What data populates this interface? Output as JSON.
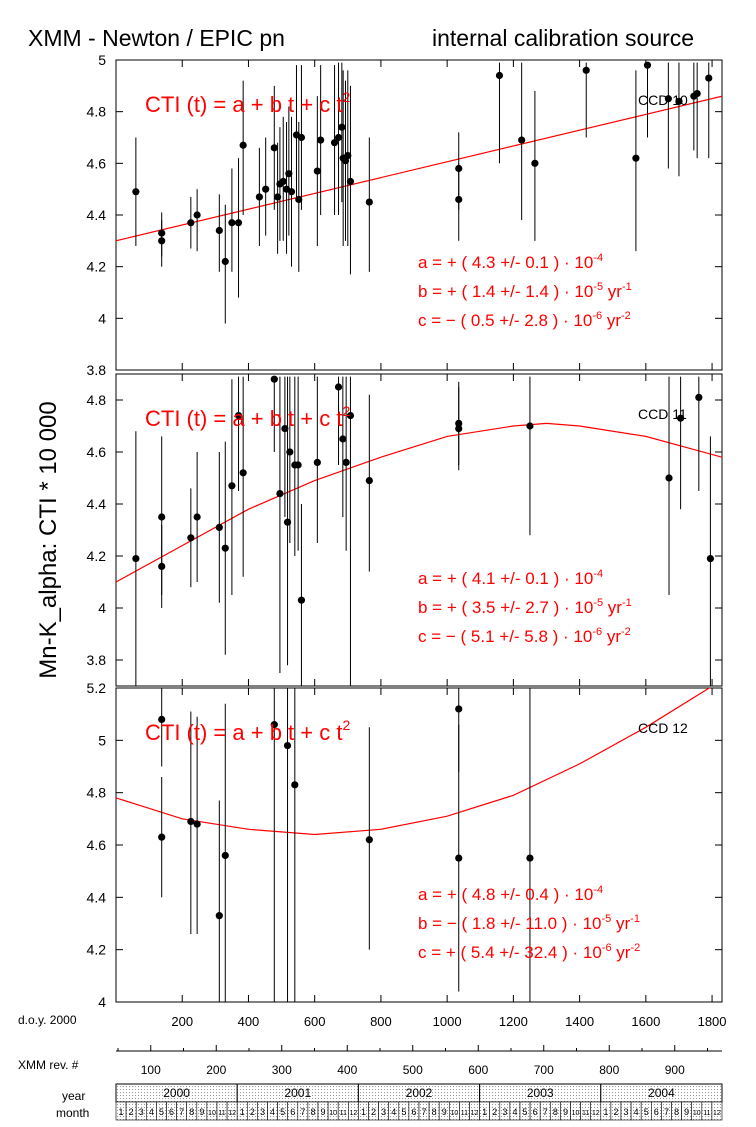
{
  "header": {
    "title_left": "XMM - Newton  /  EPIC pn",
    "title_right": "internal calibration source"
  },
  "ylabel": "Mn-K_alpha:  CTI * 10 000",
  "axes": {
    "doy_label": "d.o.y. 2000",
    "doy_ticks": [
      "200",
      "400",
      "600",
      "800",
      "1000",
      "1200",
      "1400",
      "1600",
      "1800"
    ],
    "rev_label": "XMM rev. #",
    "rev_ticks": [
      "100",
      "200",
      "300",
      "400",
      "500",
      "600",
      "700",
      "800",
      "900"
    ],
    "year_label": "year",
    "years": [
      "2000",
      "2001",
      "2002",
      "2003",
      "2004"
    ],
    "month_label": "month",
    "months": [
      "1",
      "2",
      "3",
      "4",
      "5",
      "6",
      "7",
      "8",
      "9",
      "10",
      "11",
      "12"
    ]
  },
  "colors": {
    "fit": "#ff0000",
    "points": "#000000"
  },
  "chart_data": [
    {
      "type": "scatter",
      "ccd_label": "CCD 10",
      "ylim": [
        3.8,
        5.0
      ],
      "yticks": [
        "3.8",
        "4",
        "4.2",
        "4.4",
        "4.6",
        "4.8",
        "5"
      ],
      "xlim": [
        0,
        1830
      ],
      "formula": "CTI (t)  =  a + b t + c t",
      "formula_sup": "2",
      "params": [
        {
          "name": "a",
          "sign": "+",
          "val": "( 4.3 +/- 0.1 )",
          "pow": "10",
          "exp": "-4",
          "unit": "",
          "unit_exp": ""
        },
        {
          "name": "b",
          "sign": "+",
          "val": "( 1.4 +/- 1.4 )",
          "pow": "10",
          "exp": "-5",
          "unit": "yr",
          "unit_exp": "-1"
        },
        {
          "name": "c",
          "sign": "−",
          "val": "( 0.5 +/- 2.8 )",
          "pow": "10",
          "exp": "-6",
          "unit": "yr",
          "unit_exp": "-2"
        }
      ],
      "fit": [
        [
          0,
          4.3
        ],
        [
          1830,
          4.86
        ]
      ],
      "points": [
        {
          "x": 60,
          "y": 4.49,
          "lo": 4.28,
          "hi": 4.7
        },
        {
          "x": 138,
          "y": 4.33,
          "lo": 4.24,
          "hi": 4.41
        },
        {
          "x": 138,
          "y": 4.3,
          "lo": 4.2,
          "hi": 4.38
        },
        {
          "x": 226,
          "y": 4.37,
          "lo": 4.27,
          "hi": 4.47
        },
        {
          "x": 245,
          "y": 4.4,
          "lo": 4.26,
          "hi": 4.5
        },
        {
          "x": 312,
          "y": 4.34,
          "lo": 4.18,
          "hi": 4.48
        },
        {
          "x": 330,
          "y": 4.22,
          "lo": 3.98,
          "hi": 4.44
        },
        {
          "x": 350,
          "y": 4.37,
          "lo": 4.18,
          "hi": 4.58
        },
        {
          "x": 370,
          "y": 4.37,
          "lo": 4.08,
          "hi": 4.62
        },
        {
          "x": 384,
          "y": 4.67,
          "lo": 4.4,
          "hi": 4.92
        },
        {
          "x": 433,
          "y": 4.47,
          "lo": 4.28,
          "hi": 4.66
        },
        {
          "x": 452,
          "y": 4.5,
          "lo": 4.32,
          "hi": 4.7
        },
        {
          "x": 478,
          "y": 4.66,
          "lo": 4.42,
          "hi": 4.9
        },
        {
          "x": 488,
          "y": 4.47,
          "lo": 4.25,
          "hi": 4.68
        },
        {
          "x": 495,
          "y": 4.52,
          "lo": 4.3,
          "hi": 4.74
        },
        {
          "x": 505,
          "y": 4.53,
          "lo": 4.3,
          "hi": 4.78
        },
        {
          "x": 515,
          "y": 4.5,
          "lo": 4.25,
          "hi": 4.76
        },
        {
          "x": 522,
          "y": 4.56,
          "lo": 4.32,
          "hi": 4.82
        },
        {
          "x": 530,
          "y": 4.49,
          "lo": 4.2,
          "hi": 4.78
        },
        {
          "x": 545,
          "y": 4.71,
          "lo": 4.45,
          "hi": 4.98
        },
        {
          "x": 552,
          "y": 4.46,
          "lo": 4.18,
          "hi": 4.76
        },
        {
          "x": 560,
          "y": 4.7,
          "lo": 4.42,
          "hi": 4.98
        },
        {
          "x": 608,
          "y": 4.57,
          "lo": 4.28,
          "hi": 4.86
        },
        {
          "x": 618,
          "y": 4.69,
          "lo": 4.4,
          "hi": 4.98
        },
        {
          "x": 660,
          "y": 4.68,
          "lo": 4.4,
          "hi": 4.98
        },
        {
          "x": 672,
          "y": 4.7,
          "lo": 4.4,
          "hi": 4.99
        },
        {
          "x": 682,
          "y": 4.74,
          "lo": 4.45,
          "hi": 4.99
        },
        {
          "x": 686,
          "y": 4.62,
          "lo": 4.28,
          "hi": 4.96
        },
        {
          "x": 693,
          "y": 4.61,
          "lo": 4.3,
          "hi": 4.92
        },
        {
          "x": 700,
          "y": 4.63,
          "lo": 4.28,
          "hi": 4.96
        },
        {
          "x": 708,
          "y": 4.53,
          "lo": 4.17,
          "hi": 4.9
        },
        {
          "x": 765,
          "y": 4.45,
          "lo": 4.18,
          "hi": 4.7
        },
        {
          "x": 1035,
          "y": 4.58,
          "lo": 4.42,
          "hi": 4.72
        },
        {
          "x": 1035,
          "y": 4.46,
          "lo": 4.3,
          "hi": 4.6
        },
        {
          "x": 1158,
          "y": 4.94,
          "lo": 4.6,
          "hi": 4.99
        },
        {
          "x": 1225,
          "y": 4.69,
          "lo": 4.38,
          "hi": 4.99
        },
        {
          "x": 1265,
          "y": 4.6,
          "lo": 4.3,
          "hi": 4.88
        },
        {
          "x": 1420,
          "y": 4.96,
          "lo": 4.7,
          "hi": 4.99
        },
        {
          "x": 1570,
          "y": 4.62,
          "lo": 4.26,
          "hi": 4.96
        },
        {
          "x": 1605,
          "y": 4.98,
          "lo": 4.7,
          "hi": 4.99
        },
        {
          "x": 1668,
          "y": 4.85,
          "lo": 4.58,
          "hi": 4.99
        },
        {
          "x": 1700,
          "y": 4.84,
          "lo": 4.55,
          "hi": 4.99
        },
        {
          "x": 1745,
          "y": 4.86,
          "lo": 4.65,
          "hi": 4.99
        },
        {
          "x": 1755,
          "y": 4.87,
          "lo": 4.62,
          "hi": 4.99
        },
        {
          "x": 1790,
          "y": 4.93,
          "lo": 4.62,
          "hi": 4.99
        }
      ]
    },
    {
      "type": "scatter",
      "ccd_label": "CCD 11",
      "ylim": [
        3.7,
        4.9
      ],
      "yticks": [
        "3.8",
        "4",
        "4.2",
        "4.4",
        "4.6",
        "4.8"
      ],
      "xlim": [
        0,
        1830
      ],
      "formula": "CTI (t)  =  a + b t + c t",
      "formula_sup": "2",
      "params": [
        {
          "name": "a",
          "sign": "+",
          "val": "( 4.1 +/- 0.1 )",
          "pow": "10",
          "exp": "-4",
          "unit": "",
          "unit_exp": ""
        },
        {
          "name": "b",
          "sign": "+",
          "val": "( 3.5 +/- 2.7 )",
          "pow": "10",
          "exp": "-5",
          "unit": "yr",
          "unit_exp": "-1"
        },
        {
          "name": "c",
          "sign": "−",
          "val": "( 5.1 +/- 5.8 )",
          "pow": "10",
          "exp": "-6",
          "unit": "yr",
          "unit_exp": "-2"
        }
      ],
      "fit": [
        [
          0,
          4.1
        ],
        [
          200,
          4.24
        ],
        [
          400,
          4.38
        ],
        [
          600,
          4.49
        ],
        [
          800,
          4.58
        ],
        [
          1000,
          4.66
        ],
        [
          1200,
          4.7
        ],
        [
          1300,
          4.71
        ],
        [
          1400,
          4.7
        ],
        [
          1600,
          4.66
        ],
        [
          1830,
          4.58
        ]
      ],
      "points": [
        {
          "x": 60,
          "y": 4.19,
          "lo": 3.7,
          "hi": 4.68
        },
        {
          "x": 138,
          "y": 4.35,
          "lo": 4.05,
          "hi": 4.66
        },
        {
          "x": 138,
          "y": 4.16,
          "lo": 4.0,
          "hi": 4.32
        },
        {
          "x": 226,
          "y": 4.27,
          "lo": 4.08,
          "hi": 4.46
        },
        {
          "x": 245,
          "y": 4.35,
          "lo": 4.1,
          "hi": 4.6
        },
        {
          "x": 312,
          "y": 4.31,
          "lo": 4.02,
          "hi": 4.6
        },
        {
          "x": 330,
          "y": 4.23,
          "lo": 3.82,
          "hi": 4.64
        },
        {
          "x": 350,
          "y": 4.47,
          "lo": 4.05,
          "hi": 4.88
        },
        {
          "x": 370,
          "y": 4.74,
          "lo": 4.45,
          "hi": 4.89
        },
        {
          "x": 384,
          "y": 4.52,
          "lo": 4.12,
          "hi": 4.89
        },
        {
          "x": 478,
          "y": 4.88,
          "lo": 4.6,
          "hi": 4.89
        },
        {
          "x": 495,
          "y": 4.44,
          "lo": 3.75,
          "hi": 4.89
        },
        {
          "x": 510,
          "y": 4.69,
          "lo": 4.35,
          "hi": 4.89
        },
        {
          "x": 518,
          "y": 4.33,
          "lo": 3.78,
          "hi": 4.89
        },
        {
          "x": 525,
          "y": 4.6,
          "lo": 4.25,
          "hi": 4.89
        },
        {
          "x": 540,
          "y": 4.55,
          "lo": 4.2,
          "hi": 4.89
        },
        {
          "x": 550,
          "y": 4.55,
          "lo": 4.22,
          "hi": 4.89
        },
        {
          "x": 560,
          "y": 4.03,
          "lo": 3.7,
          "hi": 4.4
        },
        {
          "x": 608,
          "y": 4.56,
          "lo": 4.25,
          "hi": 4.89
        },
        {
          "x": 672,
          "y": 4.85,
          "lo": 4.55,
          "hi": 4.89
        },
        {
          "x": 685,
          "y": 4.65,
          "lo": 4.35,
          "hi": 4.89
        },
        {
          "x": 695,
          "y": 4.56,
          "lo": 4.22,
          "hi": 4.89
        },
        {
          "x": 708,
          "y": 4.74,
          "lo": 3.7,
          "hi": 4.89
        },
        {
          "x": 765,
          "y": 4.49,
          "lo": 4.14,
          "hi": 4.82
        },
        {
          "x": 1035,
          "y": 4.71,
          "lo": 4.55,
          "hi": 4.87
        },
        {
          "x": 1035,
          "y": 4.69,
          "lo": 4.53,
          "hi": 4.85
        },
        {
          "x": 1250,
          "y": 4.7,
          "lo": 4.28,
          "hi": 4.89
        },
        {
          "x": 1670,
          "y": 4.5,
          "lo": 4.05,
          "hi": 4.89
        },
        {
          "x": 1705,
          "y": 4.73,
          "lo": 4.38,
          "hi": 4.89
        },
        {
          "x": 1760,
          "y": 4.81,
          "lo": 4.45,
          "hi": 4.89
        },
        {
          "x": 1795,
          "y": 4.19,
          "lo": 3.7,
          "hi": 4.66
        }
      ]
    },
    {
      "type": "scatter",
      "ccd_label": "CCD 12",
      "ylim": [
        4.0,
        5.2
      ],
      "yticks": [
        "4",
        "4.2",
        "4.4",
        "4.6",
        "4.8",
        "5",
        "5.2"
      ],
      "xlim": [
        0,
        1830
      ],
      "formula": "CTI (t)  =  a + b t + c t",
      "formula_sup": "2",
      "params": [
        {
          "name": "a",
          "sign": "+",
          "val": "( 4.8 +/- 0.4 )",
          "pow": "10",
          "exp": "-4",
          "unit": "",
          "unit_exp": ""
        },
        {
          "name": "b",
          "sign": "−",
          "val": "( 1.8 +/- 11.0 )",
          "pow": "10",
          "exp": "-5",
          "unit": "yr",
          "unit_exp": "-1"
        },
        {
          "name": "c",
          "sign": "+",
          "val": "( 5.4 +/- 32.4 )",
          "pow": "10",
          "exp": "-6",
          "unit": "yr",
          "unit_exp": "-2"
        }
      ],
      "fit": [
        [
          0,
          4.78
        ],
        [
          200,
          4.7
        ],
        [
          400,
          4.66
        ],
        [
          600,
          4.64
        ],
        [
          800,
          4.66
        ],
        [
          1000,
          4.71
        ],
        [
          1200,
          4.79
        ],
        [
          1400,
          4.91
        ],
        [
          1600,
          5.05
        ],
        [
          1830,
          5.23
        ]
      ],
      "points": [
        {
          "x": 138,
          "y": 5.08,
          "lo": 4.9,
          "hi": 5.2
        },
        {
          "x": 138,
          "y": 4.63,
          "lo": 4.4,
          "hi": 4.86
        },
        {
          "x": 226,
          "y": 4.69,
          "lo": 4.26,
          "hi": 5.11
        },
        {
          "x": 245,
          "y": 4.68,
          "lo": 4.26,
          "hi": 5.09
        },
        {
          "x": 312,
          "y": 4.33,
          "lo": 4.0,
          "hi": 4.77
        },
        {
          "x": 330,
          "y": 4.56,
          "lo": 4.0,
          "hi": 5.14
        },
        {
          "x": 478,
          "y": 5.06,
          "lo": 4.0,
          "hi": 5.2
        },
        {
          "x": 518,
          "y": 4.98,
          "lo": 4.0,
          "hi": 5.2
        },
        {
          "x": 540,
          "y": 4.83,
          "lo": 4.0,
          "hi": 5.2
        },
        {
          "x": 765,
          "y": 4.62,
          "lo": 4.2,
          "hi": 5.05
        },
        {
          "x": 1035,
          "y": 5.12,
          "lo": 4.88,
          "hi": 5.2
        },
        {
          "x": 1035,
          "y": 4.55,
          "lo": 4.04,
          "hi": 5.06
        },
        {
          "x": 1250,
          "y": 4.55,
          "lo": 4.0,
          "hi": 5.2
        }
      ]
    }
  ]
}
